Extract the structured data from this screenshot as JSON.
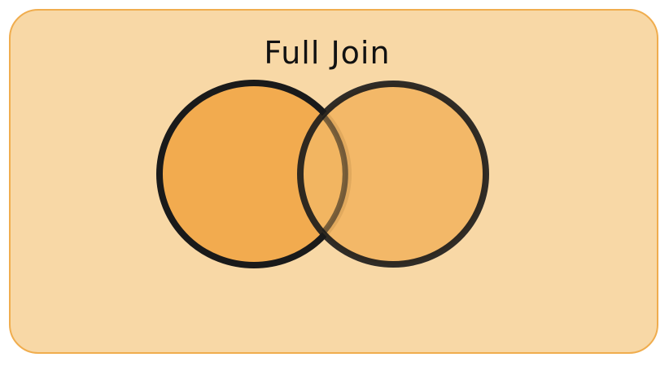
{
  "diagram": {
    "title": "Full Join",
    "colors": {
      "panel_fill": "#f8d8a6",
      "panel_border": "#f0ad4e",
      "left_circle_fill": "#f2ab4f",
      "right_circle_fill": "#f2b563",
      "circle_stroke": "#1a1a1a"
    }
  }
}
